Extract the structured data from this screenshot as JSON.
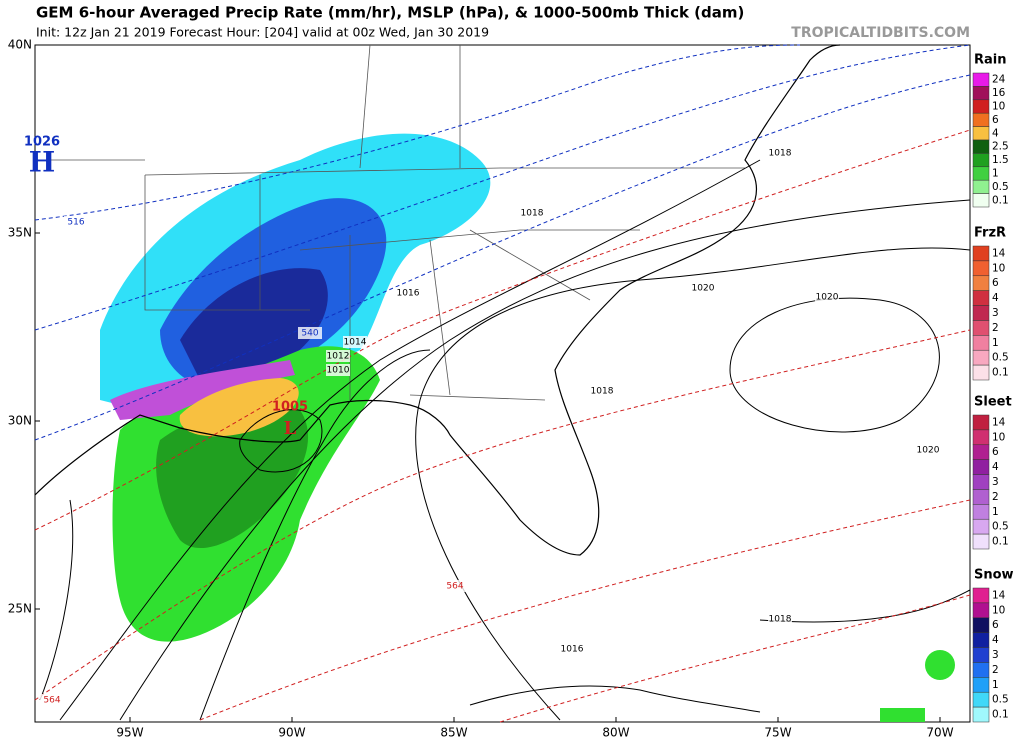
{
  "header": {
    "title": "GEM 6-hour Averaged Precip Rate (mm/hr), MSLP (hPa), & 1000-500mb Thick (dam)",
    "subtitle": "Init: 12z Jan 21 2019   Forecast Hour: [204]   valid at 00z Wed, Jan 30 2019",
    "watermark": "TROPICALTIDBITS.COM"
  },
  "map": {
    "lat_labels": [
      "40N",
      "35N",
      "30N",
      "25N"
    ],
    "lon_labels": [
      "95W",
      "90W",
      "85W",
      "80W",
      "75W",
      "70W"
    ],
    "centers": [
      {
        "label": "H",
        "value": "1026"
      },
      {
        "label": "L",
        "value": "1005"
      }
    ],
    "contour_labels": [
      "1018",
      "1018",
      "1016",
      "1014",
      "1012",
      "1010",
      "1020",
      "1020",
      "1018",
      "1020",
      "1016",
      "1018",
      "516",
      "540",
      "564",
      "564"
    ]
  },
  "legends": [
    {
      "title": "Rain",
      "labels": [
        "24",
        "16",
        "10",
        "6",
        "4",
        "2.5",
        "1.5",
        "1",
        "0.5",
        "0.1"
      ],
      "colors": [
        "#e81be8",
        "#a0105a",
        "#d02020",
        "#f07020",
        "#f8c040",
        "#106010",
        "#20a020",
        "#40d040",
        "#90f090",
        "#f0fff0"
      ]
    },
    {
      "title": "FrzR",
      "labels": [
        "14",
        "10",
        "6",
        "4",
        "3",
        "2",
        "1",
        "0.5",
        "0.1"
      ],
      "colors": [
        "#e04020",
        "#f06030",
        "#f08040",
        "#d03040",
        "#c02850",
        "#e05070",
        "#f080a0",
        "#f8a8c0",
        "#fce0e8"
      ]
    },
    {
      "title": "Sleet",
      "labels": [
        "14",
        "10",
        "6",
        "4",
        "3",
        "2",
        "1",
        "0.5",
        "0.1"
      ],
      "colors": [
        "#c02040",
        "#d03070",
        "#b02090",
        "#9020a0",
        "#a040c0",
        "#b060d0",
        "#c080e0",
        "#d8a8f0",
        "#f0e0fc"
      ]
    },
    {
      "title": "Snow",
      "labels": [
        "14",
        "10",
        "6",
        "4",
        "3",
        "2",
        "1",
        "0.5",
        "0.1"
      ],
      "colors": [
        "#e02090",
        "#b01090",
        "#101060",
        "#1020a0",
        "#2040d0",
        "#2070f0",
        "#20a0f8",
        "#40d8f8",
        "#a0f8fc"
      ]
    }
  ]
}
